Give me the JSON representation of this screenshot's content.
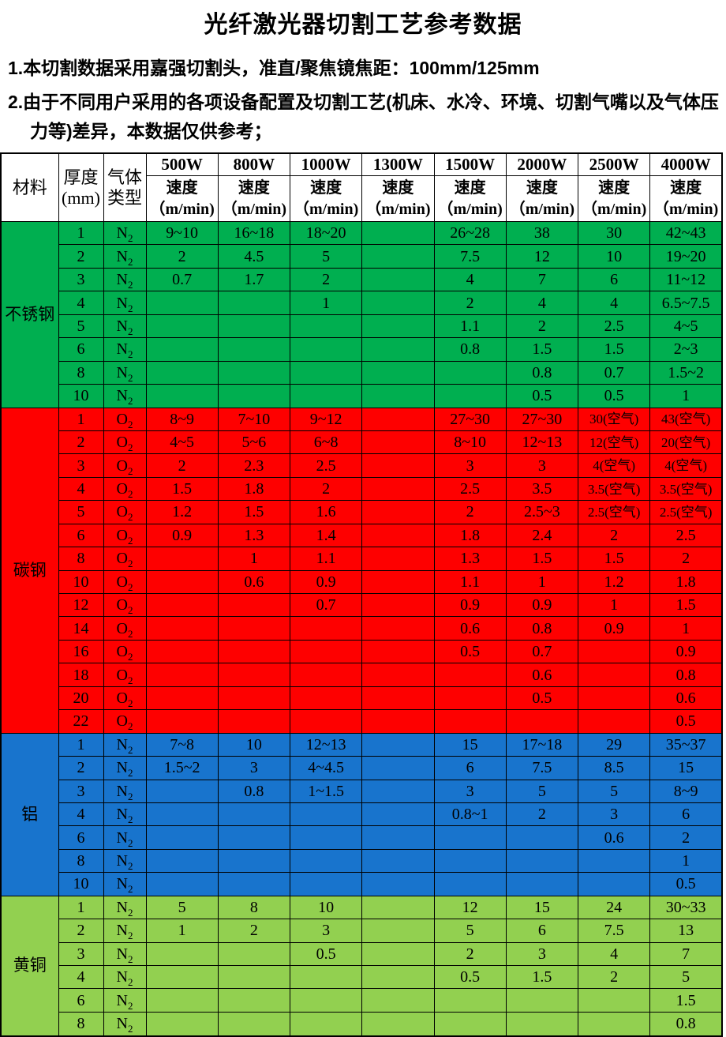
{
  "title": "光纤激光器切割工艺参考数据",
  "notes": [
    "1.本切割数据采用嘉强切割头，准直/聚焦镜焦距：100mm/125mm",
    "2.由于不同用户采用的各项设备配置及切割工艺(机床、水冷、环境、切割气嘴以及气体压力等)差异，本数据仅供参考；"
  ],
  "colors": {
    "stainless_steel": "#00AF50",
    "carbon_steel": "#FE0000",
    "aluminum": "#1874CD",
    "brass": "#92D050",
    "border": "#000000",
    "page_background": "#ffffff"
  },
  "table": {
    "header": {
      "material": "材料",
      "thickness": [
        "厚度",
        "(mm)"
      ],
      "gas": [
        "气体",
        "类型"
      ],
      "powers": [
        "500W",
        "800W",
        "1000W",
        "1300W",
        "1500W",
        "2000W",
        "2500W",
        "4000W"
      ],
      "speed_label": "速度",
      "speed_unit": "（m/min)"
    },
    "sections": [
      {
        "material": "不锈钢",
        "color": "#00AF50",
        "rows": [
          {
            "thickness": "1",
            "gas": "N2",
            "speeds": [
              "9~10",
              "16~18",
              "18~20",
              "",
              "26~28",
              "38",
              "30",
              "42~43"
            ]
          },
          {
            "thickness": "2",
            "gas": "N2",
            "speeds": [
              "2",
              "4.5",
              "5",
              "",
              "7.5",
              "12",
              "10",
              "19~20"
            ]
          },
          {
            "thickness": "3",
            "gas": "N2",
            "speeds": [
              "0.7",
              "1.7",
              "2",
              "",
              "4",
              "7",
              "6",
              "11~12"
            ]
          },
          {
            "thickness": "4",
            "gas": "N2",
            "speeds": [
              "",
              "",
              "1",
              "",
              "2",
              "4",
              "4",
              "6.5~7.5"
            ]
          },
          {
            "thickness": "5",
            "gas": "N2",
            "speeds": [
              "",
              "",
              "",
              "",
              "1.1",
              "2",
              "2.5",
              "4~5"
            ]
          },
          {
            "thickness": "6",
            "gas": "N2",
            "speeds": [
              "",
              "",
              "",
              "",
              "0.8",
              "1.5",
              "1.5",
              "2~3"
            ]
          },
          {
            "thickness": "8",
            "gas": "N2",
            "speeds": [
              "",
              "",
              "",
              "",
              "",
              "0.8",
              "0.7",
              "1.5~2"
            ]
          },
          {
            "thickness": "10",
            "gas": "N2",
            "speeds": [
              "",
              "",
              "",
              "",
              "",
              "0.5",
              "0.5",
              "1"
            ]
          }
        ]
      },
      {
        "material": "碳钢",
        "color": "#FE0000",
        "rows": [
          {
            "thickness": "1",
            "gas": "O2",
            "speeds": [
              "8~9",
              "7~10",
              "9~12",
              "",
              "27~30",
              "27~30",
              "30(空气)",
              "43(空气)"
            ]
          },
          {
            "thickness": "2",
            "gas": "O2",
            "speeds": [
              "4~5",
              "5~6",
              "6~8",
              "",
              "8~10",
              "12~13",
              "12(空气)",
              "20(空气)"
            ]
          },
          {
            "thickness": "3",
            "gas": "O2",
            "speeds": [
              "2",
              "2.3",
              "2.5",
              "",
              "3",
              "3",
              "4(空气)",
              "4(空气)"
            ]
          },
          {
            "thickness": "4",
            "gas": "O2",
            "speeds": [
              "1.5",
              "1.8",
              "2",
              "",
              "2.5",
              "3.5",
              "3.5(空气)",
              "3.5(空气)"
            ]
          },
          {
            "thickness": "5",
            "gas": "O2",
            "speeds": [
              "1.2",
              "1.5",
              "1.6",
              "",
              "2",
              "2.5~3",
              "2.5(空气)",
              "2.5(空气)"
            ]
          },
          {
            "thickness": "6",
            "gas": "O2",
            "speeds": [
              "0.9",
              "1.3",
              "1.4",
              "",
              "1.8",
              "2.4",
              "2",
              "2.5"
            ]
          },
          {
            "thickness": "8",
            "gas": "O2",
            "speeds": [
              "",
              "1",
              "1.1",
              "",
              "1.3",
              "1.5",
              "1.5",
              "2"
            ]
          },
          {
            "thickness": "10",
            "gas": "O2",
            "speeds": [
              "",
              "0.6",
              "0.9",
              "",
              "1.1",
              "1",
              "1.2",
              "1.8"
            ]
          },
          {
            "thickness": "12",
            "gas": "O2",
            "speeds": [
              "",
              "",
              "0.7",
              "",
              "0.9",
              "0.9",
              "1",
              "1.5"
            ]
          },
          {
            "thickness": "14",
            "gas": "O2",
            "speeds": [
              "",
              "",
              "",
              "",
              "0.6",
              "0.8",
              "0.9",
              "1"
            ]
          },
          {
            "thickness": "16",
            "gas": "O2",
            "speeds": [
              "",
              "",
              "",
              "",
              "0.5",
              "0.7",
              "",
              "0.9"
            ]
          },
          {
            "thickness": "18",
            "gas": "O2",
            "speeds": [
              "",
              "",
              "",
              "",
              "",
              "0.6",
              "",
              "0.8"
            ]
          },
          {
            "thickness": "20",
            "gas": "O2",
            "speeds": [
              "",
              "",
              "",
              "",
              "",
              "0.5",
              "",
              "0.6"
            ]
          },
          {
            "thickness": "22",
            "gas": "O2",
            "speeds": [
              "",
              "",
              "",
              "",
              "",
              "",
              "",
              "0.5"
            ]
          }
        ]
      },
      {
        "material": "铝",
        "color": "#1874CD",
        "rows": [
          {
            "thickness": "1",
            "gas": "N2",
            "speeds": [
              "7~8",
              "10",
              "12~13",
              "",
              "15",
              "17~18",
              "29",
              "35~37"
            ]
          },
          {
            "thickness": "2",
            "gas": "N2",
            "speeds": [
              "1.5~2",
              "3",
              "4~4.5",
              "",
              "6",
              "7.5",
              "8.5",
              "15"
            ]
          },
          {
            "thickness": "3",
            "gas": "N2",
            "speeds": [
              "",
              "0.8",
              "1~1.5",
              "",
              "3",
              "5",
              "5",
              "8~9"
            ]
          },
          {
            "thickness": "4",
            "gas": "N2",
            "speeds": [
              "",
              "",
              "",
              "",
              "0.8~1",
              "2",
              "3",
              "6"
            ]
          },
          {
            "thickness": "6",
            "gas": "N2",
            "speeds": [
              "",
              "",
              "",
              "",
              "",
              "",
              "0.6",
              "2"
            ]
          },
          {
            "thickness": "8",
            "gas": "N2",
            "speeds": [
              "",
              "",
              "",
              "",
              "",
              "",
              "",
              "1"
            ]
          },
          {
            "thickness": "10",
            "gas": "N2",
            "speeds": [
              "",
              "",
              "",
              "",
              "",
              "",
              "",
              "0.5"
            ]
          }
        ]
      },
      {
        "material": "黄铜",
        "color": "#92D050",
        "rows": [
          {
            "thickness": "1",
            "gas": "N2",
            "speeds": [
              "5",
              "8",
              "10",
              "",
              "12",
              "15",
              "24",
              "30~33"
            ]
          },
          {
            "thickness": "2",
            "gas": "N2",
            "speeds": [
              "1",
              "2",
              "3",
              "",
              "5",
              "6",
              "7.5",
              "13"
            ]
          },
          {
            "thickness": "3",
            "gas": "N2",
            "speeds": [
              "",
              "",
              "0.5",
              "",
              "2",
              "3",
              "4",
              "7"
            ]
          },
          {
            "thickness": "4",
            "gas": "N2",
            "speeds": [
              "",
              "",
              "",
              "",
              "0.5",
              "1.5",
              "2",
              "5"
            ]
          },
          {
            "thickness": "6",
            "gas": "N2",
            "speeds": [
              "",
              "",
              "",
              "",
              "",
              "",
              "",
              "1.5"
            ]
          },
          {
            "thickness": "8",
            "gas": "N2",
            "speeds": [
              "",
              "",
              "",
              "",
              "",
              "",
              "",
              "0.8"
            ]
          }
        ]
      }
    ]
  }
}
